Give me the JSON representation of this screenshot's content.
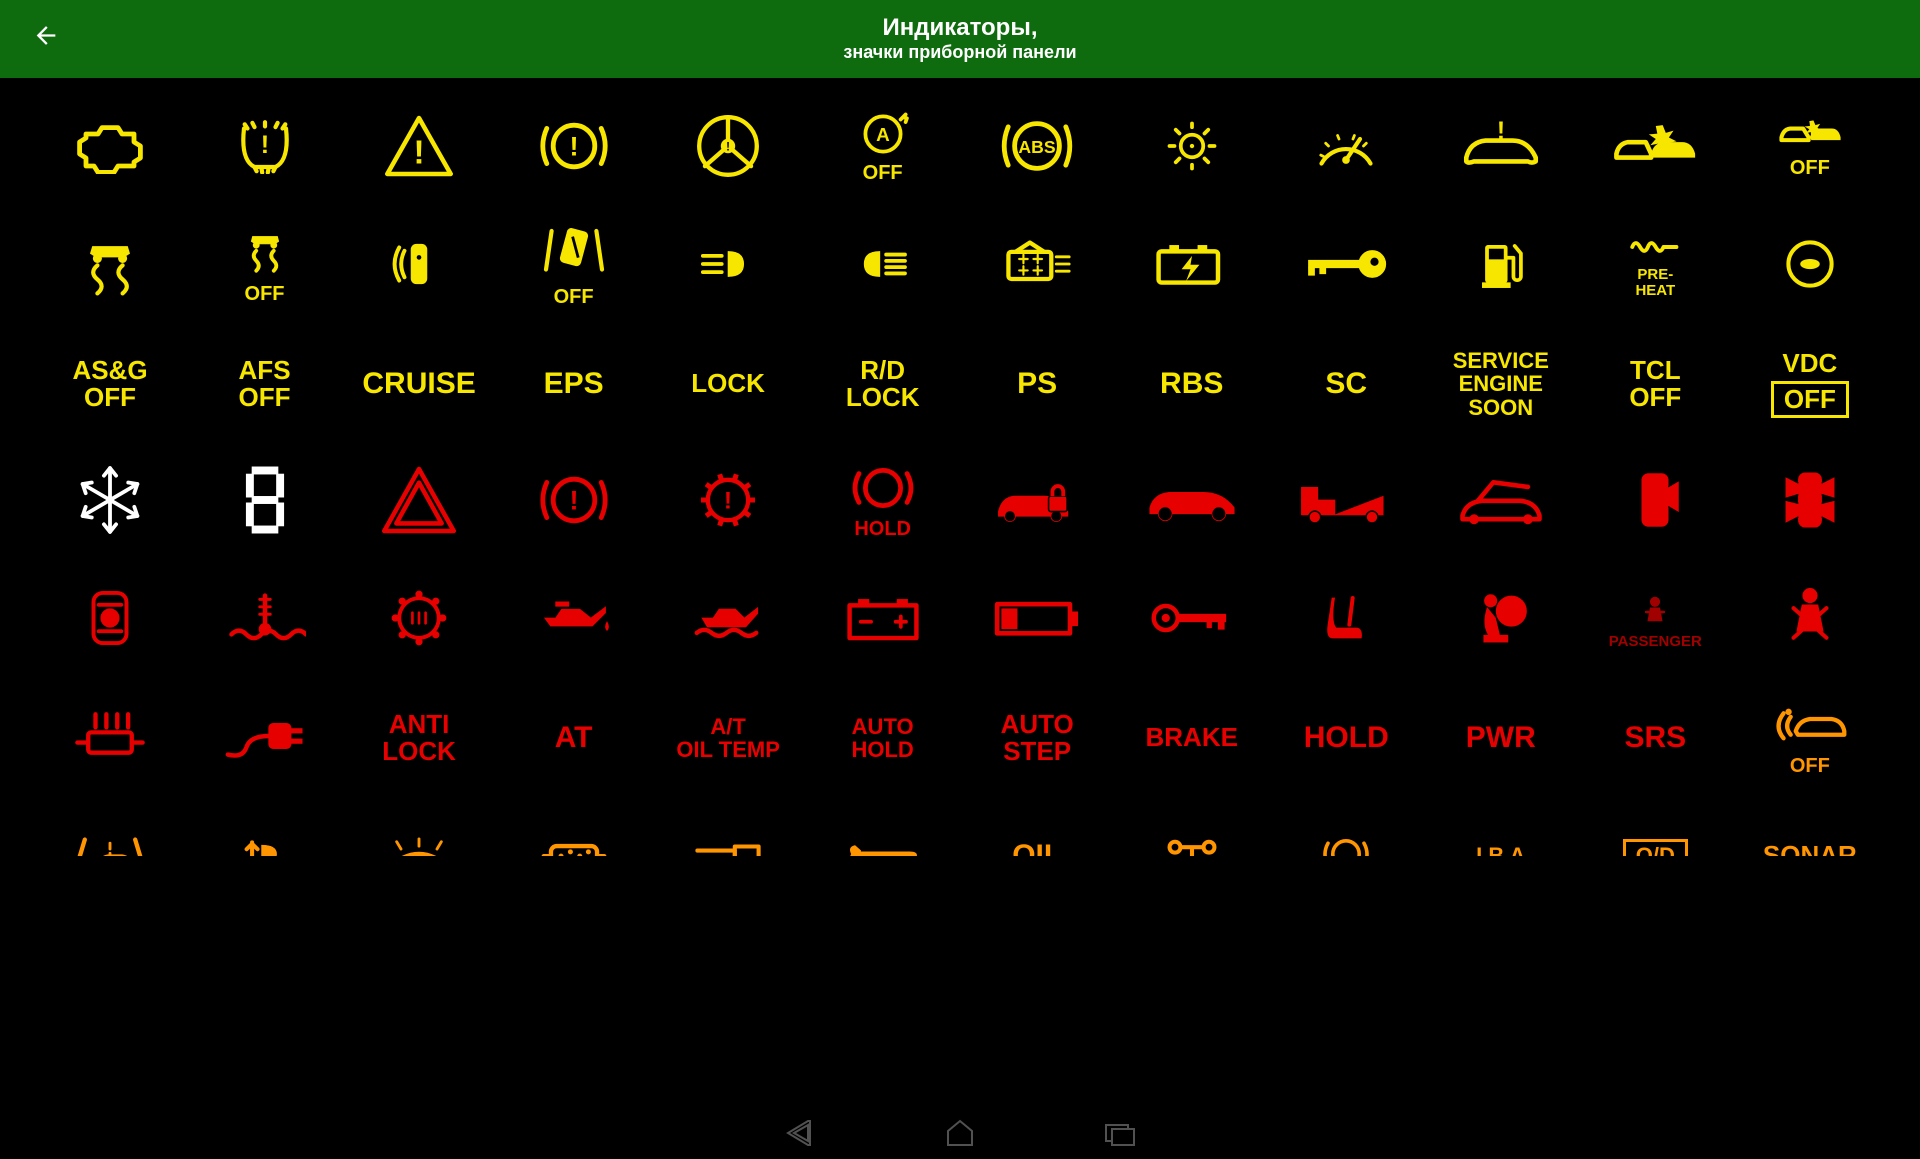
{
  "header": {
    "title": "Индикаторы,",
    "subtitle": "значки приборной панели"
  },
  "colors": {
    "yellow": "#f7e600",
    "red": "#e60000",
    "orange": "#ff9500",
    "white": "#ffffff",
    "darkred": "#a00000",
    "header_bg": "#0e6b0e",
    "bg": "#000000"
  },
  "rows": [
    {
      "color": "yellow",
      "items": [
        {
          "name": "check-engine-icon",
          "type": "icon",
          "icon": "engine"
        },
        {
          "name": "tire-pressure-icon",
          "type": "icon",
          "icon": "tpms"
        },
        {
          "name": "warning-triangle-icon",
          "type": "icon",
          "icon": "triangle"
        },
        {
          "name": "brake-warning-icon",
          "type": "icon",
          "icon": "brake_excl"
        },
        {
          "name": "steering-warning-icon",
          "type": "icon",
          "icon": "steering"
        },
        {
          "name": "auto-start-stop-off-icon",
          "type": "icon",
          "icon": "a_off",
          "sub": "OFF"
        },
        {
          "name": "abs-icon",
          "type": "icon",
          "icon": "abs"
        },
        {
          "name": "exterior-light-icon",
          "type": "icon",
          "icon": "lamp"
        },
        {
          "name": "speed-limiter-icon",
          "type": "icon",
          "icon": "speedo"
        },
        {
          "name": "car-warning-icon",
          "type": "icon",
          "icon": "car_excl"
        },
        {
          "name": "collision-warning-icon",
          "type": "icon",
          "icon": "collision"
        },
        {
          "name": "collision-off-icon",
          "type": "icon",
          "icon": "collision_off",
          "sub": "OFF"
        }
      ]
    },
    {
      "color": "yellow",
      "items": [
        {
          "name": "traction-control-icon",
          "type": "icon",
          "icon": "traction"
        },
        {
          "name": "traction-off-icon",
          "type": "icon",
          "icon": "traction_off",
          "sub": "OFF"
        },
        {
          "name": "parking-sensor-icon",
          "type": "icon",
          "icon": "park_sensor"
        },
        {
          "name": "lane-departure-off-icon",
          "type": "icon",
          "icon": "lane_off",
          "sub": "OFF"
        },
        {
          "name": "fog-light-front-icon",
          "type": "icon",
          "icon": "fog_front"
        },
        {
          "name": "fog-light-rear-icon",
          "type": "icon",
          "icon": "fog_rear"
        },
        {
          "name": "adaptive-light-icon",
          "type": "icon",
          "icon": "adaptive_light"
        },
        {
          "name": "battery-charge-icon",
          "type": "icon",
          "icon": "battery_charge"
        },
        {
          "name": "key-detected-icon",
          "type": "icon",
          "icon": "key"
        },
        {
          "name": "low-fuel-icon",
          "type": "icon",
          "icon": "fuel"
        },
        {
          "name": "glow-plug-preheat-icon",
          "type": "icon",
          "icon": "preheat",
          "sub": "PRE-\nHEAT"
        },
        {
          "name": "eco-icon",
          "type": "icon",
          "icon": "eco_circle"
        }
      ]
    },
    {
      "color": "yellow",
      "items": [
        {
          "name": "asg-off-label",
          "type": "text",
          "text": "AS&G\nOFF",
          "size": "m"
        },
        {
          "name": "afs-off-label",
          "type": "text",
          "text": "AFS\nOFF",
          "size": "m"
        },
        {
          "name": "cruise-label",
          "type": "text",
          "text": "CRUISE",
          "size": "l"
        },
        {
          "name": "eps-label",
          "type": "text",
          "text": "EPS",
          "size": "l"
        },
        {
          "name": "lock-label",
          "type": "text",
          "text": "LOCK",
          "size": "m"
        },
        {
          "name": "rd-lock-label",
          "type": "text",
          "text": "R/D\nLOCK",
          "size": "m"
        },
        {
          "name": "ps-label",
          "type": "text",
          "text": "PS",
          "size": "l"
        },
        {
          "name": "rbs-label",
          "type": "text",
          "text": "RBS",
          "size": "l"
        },
        {
          "name": "sc-label",
          "type": "text",
          "text": "SC",
          "size": "l"
        },
        {
          "name": "service-engine-label",
          "type": "text",
          "text": "SERVICE\nENGINE\nSOON",
          "size": "s"
        },
        {
          "name": "tcl-off-label",
          "type": "text",
          "text": "TCL\nOFF",
          "size": "m"
        },
        {
          "name": "vdc-off-label",
          "type": "text",
          "text": "VDC",
          "size": "m",
          "sub_boxed": "OFF"
        }
      ]
    },
    {
      "color": "red",
      "items": [
        {
          "name": "frost-warning-icon",
          "type": "icon",
          "icon": "snowflake",
          "color_override": "white"
        },
        {
          "name": "digit-8-icon",
          "type": "icon",
          "icon": "seven_seg",
          "color_override": "white"
        },
        {
          "name": "hazard-triangle-icon",
          "type": "icon",
          "icon": "triangle_dbl"
        },
        {
          "name": "brake-system-icon",
          "type": "icon",
          "icon": "brake_excl"
        },
        {
          "name": "transmission-warning-icon",
          "type": "icon",
          "icon": "gear_excl"
        },
        {
          "name": "brake-hold-icon",
          "type": "icon",
          "icon": "brake_hold",
          "sub": "HOLD"
        },
        {
          "name": "immobilizer-icon",
          "type": "icon",
          "icon": "car_lock"
        },
        {
          "name": "car-side-icon",
          "type": "icon",
          "icon": "car_side"
        },
        {
          "name": "tow-truck-icon",
          "type": "icon",
          "icon": "tow"
        },
        {
          "name": "hood-open-icon",
          "type": "icon",
          "icon": "hood"
        },
        {
          "name": "door-ajar-icon",
          "type": "icon",
          "icon": "door_one"
        },
        {
          "name": "doors-open-icon",
          "type": "icon",
          "icon": "door_all"
        }
      ]
    },
    {
      "color": "red",
      "items": [
        {
          "name": "steering-lock-icon",
          "type": "icon",
          "icon": "steering_lock"
        },
        {
          "name": "coolant-temp-icon",
          "type": "icon",
          "icon": "temp"
        },
        {
          "name": "oil-temp-gear-icon",
          "type": "icon",
          "icon": "oil_gear"
        },
        {
          "name": "oil-pressure-icon",
          "type": "icon",
          "icon": "oil_can"
        },
        {
          "name": "oil-level-icon",
          "type": "icon",
          "icon": "oil_level"
        },
        {
          "name": "battery-icon",
          "type": "icon",
          "icon": "battery"
        },
        {
          "name": "battery-low-icon",
          "type": "icon",
          "icon": "battery_low"
        },
        {
          "name": "key-warning-icon",
          "type": "icon",
          "icon": "key2"
        },
        {
          "name": "seat-heater-icon",
          "type": "icon",
          "icon": "seat"
        },
        {
          "name": "airbag-icon",
          "type": "icon",
          "icon": "airbag"
        },
        {
          "name": "passenger-airbag-icon",
          "type": "icon",
          "icon": "passenger",
          "sub": "PASSENGER",
          "color_override": "darkred"
        },
        {
          "name": "seatbelt-icon",
          "type": "icon",
          "icon": "seatbelt"
        }
      ]
    },
    {
      "color": "red",
      "items": [
        {
          "name": "catalytic-icon",
          "type": "icon",
          "icon": "cat_conv"
        },
        {
          "name": "ev-plug-icon",
          "type": "icon",
          "icon": "plug"
        },
        {
          "name": "anti-lock-label",
          "type": "text",
          "text": "ANTI\nLOCK",
          "size": "m"
        },
        {
          "name": "at-label",
          "type": "text",
          "text": "AT",
          "size": "l"
        },
        {
          "name": "at-oil-temp-label",
          "type": "text",
          "text": "A/T\nOIL TEMP",
          "size": "s"
        },
        {
          "name": "auto-hold-label",
          "type": "text",
          "text": "AUTO\nHOLD",
          "size": "s"
        },
        {
          "name": "auto-step-label",
          "type": "text",
          "text": "AUTO\nSTEP",
          "size": "m"
        },
        {
          "name": "brake-label",
          "type": "text",
          "text": "BRAKE",
          "size": "m"
        },
        {
          "name": "hold-label",
          "type": "text",
          "text": "HOLD",
          "size": "l"
        },
        {
          "name": "pwr-label",
          "type": "text",
          "text": "PWR",
          "size": "l"
        },
        {
          "name": "srs-label",
          "type": "text",
          "text": "SRS",
          "size": "l"
        },
        {
          "name": "bsm-off-icon",
          "type": "icon",
          "icon": "bsm_off",
          "sub": "OFF",
          "color_override": "orange"
        }
      ]
    },
    {
      "color": "orange",
      "items": [
        {
          "name": "lane-assist-icon",
          "type": "icon",
          "icon": "lane",
          "partial": true
        },
        {
          "name": "headlight-level-icon",
          "type": "icon",
          "icon": "level",
          "partial": true
        },
        {
          "name": "washer-fluid-icon",
          "type": "icon",
          "icon": "washer",
          "partial": true
        },
        {
          "name": "dpf-icon",
          "type": "icon",
          "icon": "dpf",
          "partial": true
        },
        {
          "name": "trailer-icon",
          "type": "icon",
          "icon": "trailer",
          "partial": true
        },
        {
          "name": "service-wrench-icon",
          "type": "icon",
          "icon": "wrench",
          "partial": true
        },
        {
          "name": "oil-label",
          "type": "text",
          "text": "OIL",
          "size": "l",
          "partial": true
        },
        {
          "name": "awd-icon",
          "type": "icon",
          "icon": "awd",
          "partial": true
        },
        {
          "name": "parking-brake-icon",
          "type": "icon",
          "icon": "brake_arc",
          "partial": true
        },
        {
          "name": "iba-label",
          "type": "text",
          "text": "I B A",
          "size": "s",
          "partial": true
        },
        {
          "name": "od-label",
          "type": "text",
          "size": "s",
          "boxed": "O/D",
          "partial": true
        },
        {
          "name": "sonar-label",
          "type": "text",
          "text": "SONAR",
          "size": "m",
          "partial": true
        }
      ]
    }
  ]
}
